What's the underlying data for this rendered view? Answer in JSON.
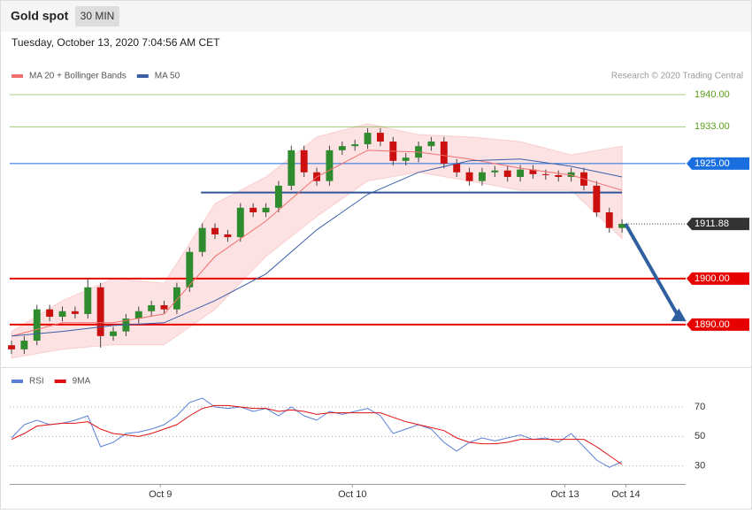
{
  "header": {
    "title": "Gold spot",
    "timeframe": "30 MIN",
    "timestamp": "Tuesday, October 13, 2020 7:04:56 AM CET"
  },
  "chart_data": [
    {
      "type": "candlestick",
      "credit": "Research © 2020 Trading Central",
      "xlim": [
        0,
        53
      ],
      "ylim": [
        1881.7,
        1942.3
      ],
      "up_color": "#2e8b2e",
      "down_color": "#cc1010",
      "open": [
        1885.5,
        1884.6,
        1886.5,
        1893.3,
        1891.7,
        1892.9,
        1892.3,
        1898.1,
        1887.5,
        1888.5,
        1891.3,
        1892.9,
        1894.2,
        1893.3,
        1898.1,
        1905.8,
        1911.0,
        1909.6,
        1909.0,
        1915.4,
        1914.4,
        1915.4,
        1920.2,
        1927.9,
        1923.1,
        1921.2,
        1927.9,
        1928.8,
        1929.2,
        1931.7,
        1929.8,
        1925.6,
        1926.3,
        1928.8,
        1929.8,
        1925.0,
        1923.1,
        1921.2,
        1923.1,
        1923.5,
        1922.1,
        1923.7,
        1922.7,
        1922.5,
        1922.1,
        1923.1,
        1920.2,
        1914.4,
        1911.0
      ],
      "high": [
        1886.5,
        1887.5,
        1894.3,
        1894.3,
        1893.9,
        1893.9,
        1900.0,
        1899.1,
        1889.5,
        1892.3,
        1893.9,
        1895.2,
        1895.2,
        1899.1,
        1906.8,
        1912.0,
        1912.0,
        1910.6,
        1916.4,
        1916.4,
        1916.4,
        1921.2,
        1928.9,
        1928.9,
        1924.1,
        1928.9,
        1929.8,
        1930.2,
        1932.7,
        1932.7,
        1930.8,
        1927.3,
        1929.8,
        1930.8,
        1930.8,
        1926.0,
        1924.1,
        1924.1,
        1924.5,
        1924.5,
        1924.7,
        1924.7,
        1923.7,
        1923.5,
        1924.1,
        1924.1,
        1921.2,
        1915.4,
        1912.9
      ],
      "low": [
        1883.6,
        1883.6,
        1885.5,
        1890.7,
        1890.7,
        1891.3,
        1891.3,
        1885.0,
        1886.5,
        1887.5,
        1890.3,
        1891.9,
        1892.3,
        1892.3,
        1897.1,
        1904.8,
        1908.6,
        1908.0,
        1908.0,
        1913.4,
        1913.4,
        1914.4,
        1919.2,
        1922.1,
        1920.2,
        1920.2,
        1926.9,
        1927.8,
        1928.2,
        1928.8,
        1924.6,
        1924.6,
        1925.3,
        1927.8,
        1924.0,
        1922.1,
        1920.2,
        1920.2,
        1922.1,
        1921.1,
        1921.1,
        1921.7,
        1921.5,
        1921.1,
        1921.1,
        1919.2,
        1913.4,
        1910.0,
        1910.0
      ],
      "close": [
        1884.6,
        1886.5,
        1893.3,
        1891.7,
        1892.9,
        1892.3,
        1898.1,
        1887.5,
        1888.5,
        1891.3,
        1892.9,
        1894.2,
        1893.3,
        1898.1,
        1905.8,
        1911.0,
        1909.6,
        1909.0,
        1915.4,
        1914.4,
        1915.4,
        1920.2,
        1927.9,
        1923.1,
        1921.2,
        1927.9,
        1928.8,
        1929.2,
        1931.7,
        1929.8,
        1925.6,
        1926.3,
        1928.8,
        1929.8,
        1925.0,
        1923.1,
        1921.2,
        1923.1,
        1923.5,
        1922.1,
        1923.7,
        1922.7,
        1922.5,
        1922.1,
        1923.1,
        1920.2,
        1914.4,
        1911.0,
        1911.9
      ],
      "series_x": [
        0,
        4,
        8,
        12,
        16,
        20,
        24,
        28,
        32,
        36,
        40,
        44,
        48
      ],
      "series": [
        {
          "name": "MA 20 + Bollinger Bands",
          "color": "#f07070",
          "values": [
            1887.5,
            1890.4,
            1890.4,
            1892.3,
            1904.8,
            1912.5,
            1922.1,
            1927.9,
            1927.5,
            1926.0,
            1924.0,
            1922.5,
            1919.2
          ],
          "upper": [
            1888.5,
            1895.2,
            1900.0,
            1899.0,
            1916.3,
            1922.1,
            1930.8,
            1933.7,
            1931.3,
            1930.8,
            1929.8,
            1926.9,
            1928.8
          ],
          "lower": [
            1882.7,
            1884.6,
            1885.6,
            1885.6,
            1893.3,
            1904.8,
            1913.5,
            1921.2,
            1923.1,
            1921.2,
            1919.2,
            1919.2,
            1908.7
          ]
        },
        {
          "name": "MA 50",
          "color": "#3a5fa8",
          "values": [
            1887.5,
            1888.5,
            1889.8,
            1890.4,
            1895.2,
            1901.0,
            1910.6,
            1918.3,
            1923.1,
            1925.6,
            1926.0,
            1924.4,
            1922.1
          ]
        }
      ],
      "trendline": {
        "value": 1918.7,
        "x": [
          14.9,
          48
        ],
        "color": "#2f5597"
      },
      "levels": [
        {
          "value": 1940,
          "label": "1940.00",
          "color": "#5a9e1a",
          "boxed": false,
          "line": "solid"
        },
        {
          "value": 1933,
          "label": "1933.00",
          "color": "#5a9e1a",
          "boxed": false,
          "line": "solid"
        },
        {
          "value": 1925,
          "label": "1925.00",
          "color": "#1a6fe0",
          "boxed": true,
          "line": "solid"
        },
        {
          "value": 1911.88,
          "label": "1911.88",
          "color": "#333333",
          "boxed": true,
          "line": "dotted"
        },
        {
          "value": 1900,
          "label": "1900.00",
          "color": "#e60000",
          "boxed": true,
          "line": "thick"
        },
        {
          "value": 1890,
          "label": "1890.00",
          "color": "#e60000",
          "boxed": true,
          "line": "thick"
        }
      ]
    },
    {
      "type": "line",
      "xlim": [
        0,
        53
      ],
      "ylim": [
        19,
        82
      ],
      "yticks": [
        70,
        50,
        30
      ],
      "grid": true,
      "xticks": [
        {
          "value": 11.7,
          "label": "Oct 9"
        },
        {
          "value": 26.8,
          "label": "Oct 10"
        },
        {
          "value": 43.5,
          "label": "Oct 13"
        },
        {
          "value": 48.3,
          "label": "Oct 14"
        }
      ],
      "series": [
        {
          "name": "RSI",
          "color": "#5b7fd6",
          "values": [
            49,
            58,
            61,
            58,
            59,
            61,
            64,
            43,
            46,
            52,
            53,
            55,
            58,
            64,
            73,
            76,
            70,
            69,
            70,
            67,
            69,
            64,
            70,
            64,
            61,
            67,
            65,
            67,
            69,
            64,
            52,
            55,
            58,
            55,
            46,
            40,
            46,
            49,
            47,
            49,
            51,
            48,
            49,
            46,
            52,
            43,
            34,
            29,
            33
          ]
        },
        {
          "name": "9MA",
          "color": "#e01010",
          "values": [
            48,
            52,
            57,
            58,
            59,
            59,
            60,
            55,
            52,
            51,
            50,
            52,
            55,
            58,
            64,
            69,
            71,
            71,
            70,
            69,
            69,
            67,
            68,
            67,
            65,
            66,
            66,
            66,
            66,
            66,
            63,
            60,
            58,
            56,
            54,
            49,
            46,
            45,
            45,
            46,
            48,
            48,
            48,
            48,
            48,
            48,
            43,
            37,
            31
          ]
        }
      ]
    }
  ]
}
